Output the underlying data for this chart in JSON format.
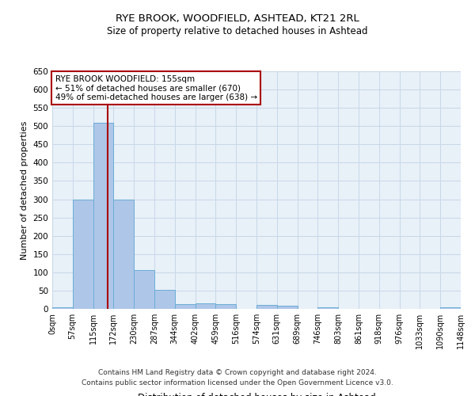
{
  "title_line1": "RYE BROOK, WOODFIELD, ASHTEAD, KT21 2RL",
  "title_line2": "Size of property relative to detached houses in Ashtead",
  "xlabel": "Distribution of detached houses by size in Ashtead",
  "ylabel": "Number of detached properties",
  "annotation_line1": "RYE BROOK WOODFIELD: 155sqm",
  "annotation_line2": "← 51% of detached houses are smaller (670)",
  "annotation_line3": "49% of semi-detached houses are larger (638) →",
  "property_size": 155,
  "bar_edges": [
    0,
    57,
    115,
    172,
    230,
    287,
    344,
    402,
    459,
    516,
    574,
    631,
    689,
    746,
    803,
    861,
    918,
    976,
    1033,
    1090,
    1148
  ],
  "bar_heights": [
    5,
    300,
    510,
    300,
    107,
    53,
    13,
    15,
    13,
    0,
    10,
    8,
    0,
    5,
    0,
    0,
    0,
    0,
    0,
    5
  ],
  "bar_color": "#aec6e8",
  "bar_edge_color": "#6aaed6",
  "vline_x": 155,
  "vline_color": "#aa0000",
  "grid_color": "#c8d8e8",
  "bg_color": "#e8f0f8",
  "annotation_box_color": "#ffffff",
  "annotation_box_edge": "#aa0000",
  "footer_line1": "Contains HM Land Registry data © Crown copyright and database right 2024.",
  "footer_line2": "Contains public sector information licensed under the Open Government Licence v3.0.",
  "ylim": [
    0,
    650
  ],
  "yticks": [
    0,
    50,
    100,
    150,
    200,
    250,
    300,
    350,
    400,
    450,
    500,
    550,
    600,
    650
  ]
}
